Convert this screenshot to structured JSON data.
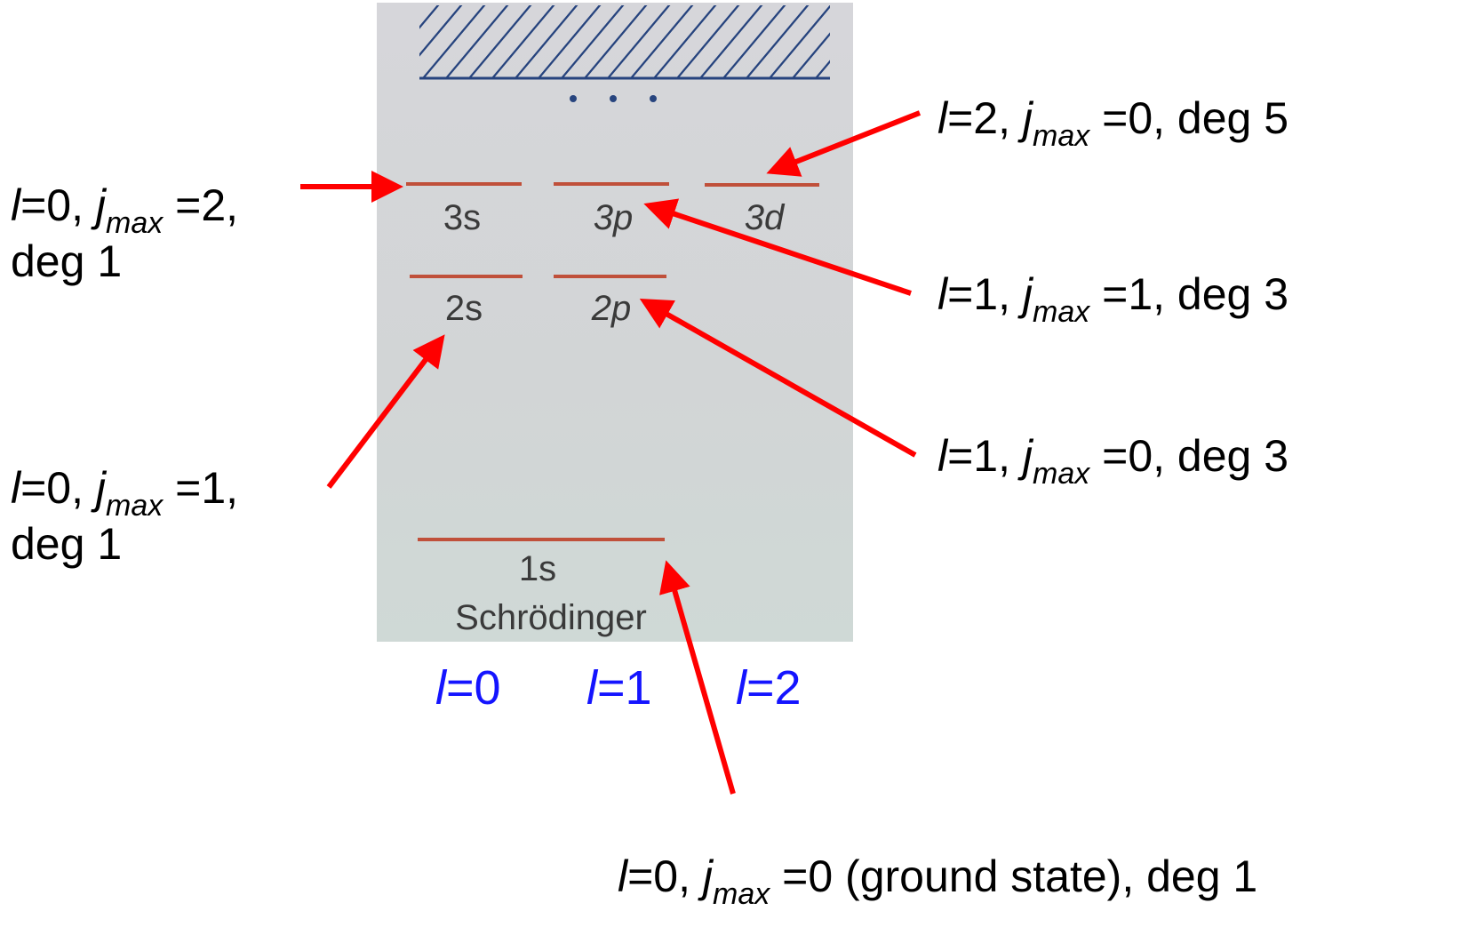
{
  "levels": [
    {
      "label": "3s"
    },
    {
      "label": "3p"
    },
    {
      "label": "3d"
    },
    {
      "label": "2s"
    },
    {
      "label": "2p"
    },
    {
      "label": "1s"
    }
  ],
  "model": "Schrödinger",
  "columns": [
    {
      "l": "l",
      "eq": "=0"
    },
    {
      "l": "l",
      "eq": "=1"
    },
    {
      "l": "l",
      "eq": "=2"
    }
  ],
  "annotations": [
    {
      "l": "l",
      "eq": "=0, ",
      "j": "j",
      "sub": "max",
      "rest": " =2,",
      "line2": "deg 1"
    },
    {
      "l": "l",
      "eq": "=2, ",
      "j": "j",
      "sub": "max",
      "rest": " =0, deg 5"
    },
    {
      "l": "l",
      "eq": "=1, ",
      "j": "j",
      "sub": "max",
      "rest": " =1, deg 3"
    },
    {
      "l": "l",
      "eq": "=0, ",
      "j": "j",
      "sub": "max",
      "rest": " =1,",
      "line2": "deg 1"
    },
    {
      "l": "l",
      "eq": "=1, ",
      "j": "j",
      "sub": "max",
      "rest": " =0, deg 3"
    },
    {
      "l": "l",
      "eq": "=0, ",
      "j": "j",
      "sub": "max",
      "rest": " =0 (ground state), deg 1"
    }
  ]
}
